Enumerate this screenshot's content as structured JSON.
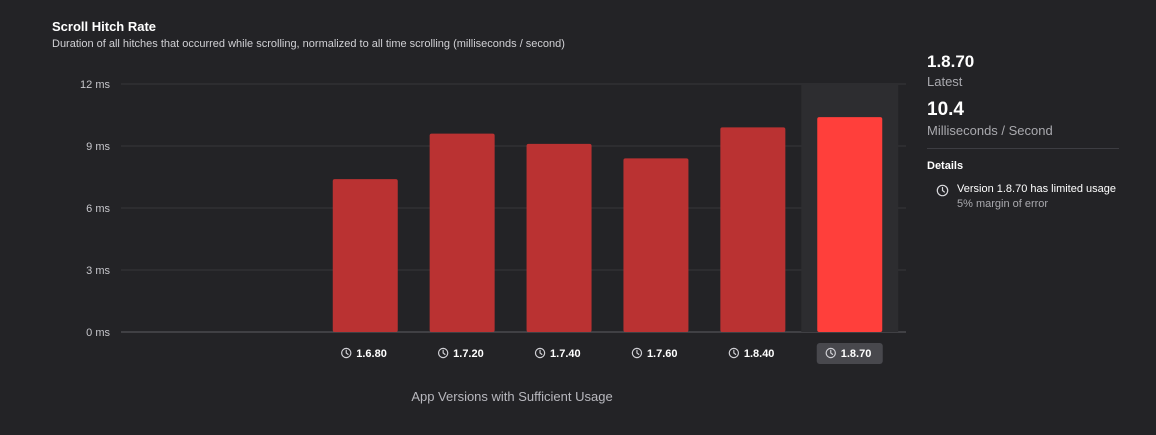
{
  "chart_data": {
    "type": "bar",
    "title": "Scroll Hitch Rate",
    "subtitle": "Duration of all hitches that occurred while scrolling, normalized to all time scrolling (milliseconds / second)",
    "xlabel": "App Versions with Sufficient Usage",
    "ylabel": "",
    "unit": "ms",
    "ylim": [
      0,
      12
    ],
    "yticks": [
      0,
      3,
      6,
      9,
      12
    ],
    "ytick_labels": [
      "0 ms",
      "3 ms",
      "6 ms",
      "9 ms",
      "12 ms"
    ],
    "categories": [
      "",
      "",
      "1.6.80",
      "1.7.20",
      "1.7.40",
      "1.7.60",
      "1.8.40",
      "1.8.70"
    ],
    "values": [
      null,
      null,
      7.4,
      9.6,
      9.1,
      8.4,
      9.9,
      10.4
    ],
    "highlight": "1.8.70",
    "grid": true,
    "colors": {
      "bar": "#ba3232",
      "highlight_bar": "#ff3f3b",
      "highlight_bg": "#2d2d30"
    }
  },
  "icons": {
    "version": "clock-icon"
  },
  "summary": {
    "version": "1.8.70",
    "version_label": "Latest",
    "value": "10.4",
    "value_label": "Milliseconds / Second"
  },
  "details": {
    "heading": "Details",
    "note": "Version 1.8.70 has limited usage",
    "note_sub": "5% margin of error"
  }
}
